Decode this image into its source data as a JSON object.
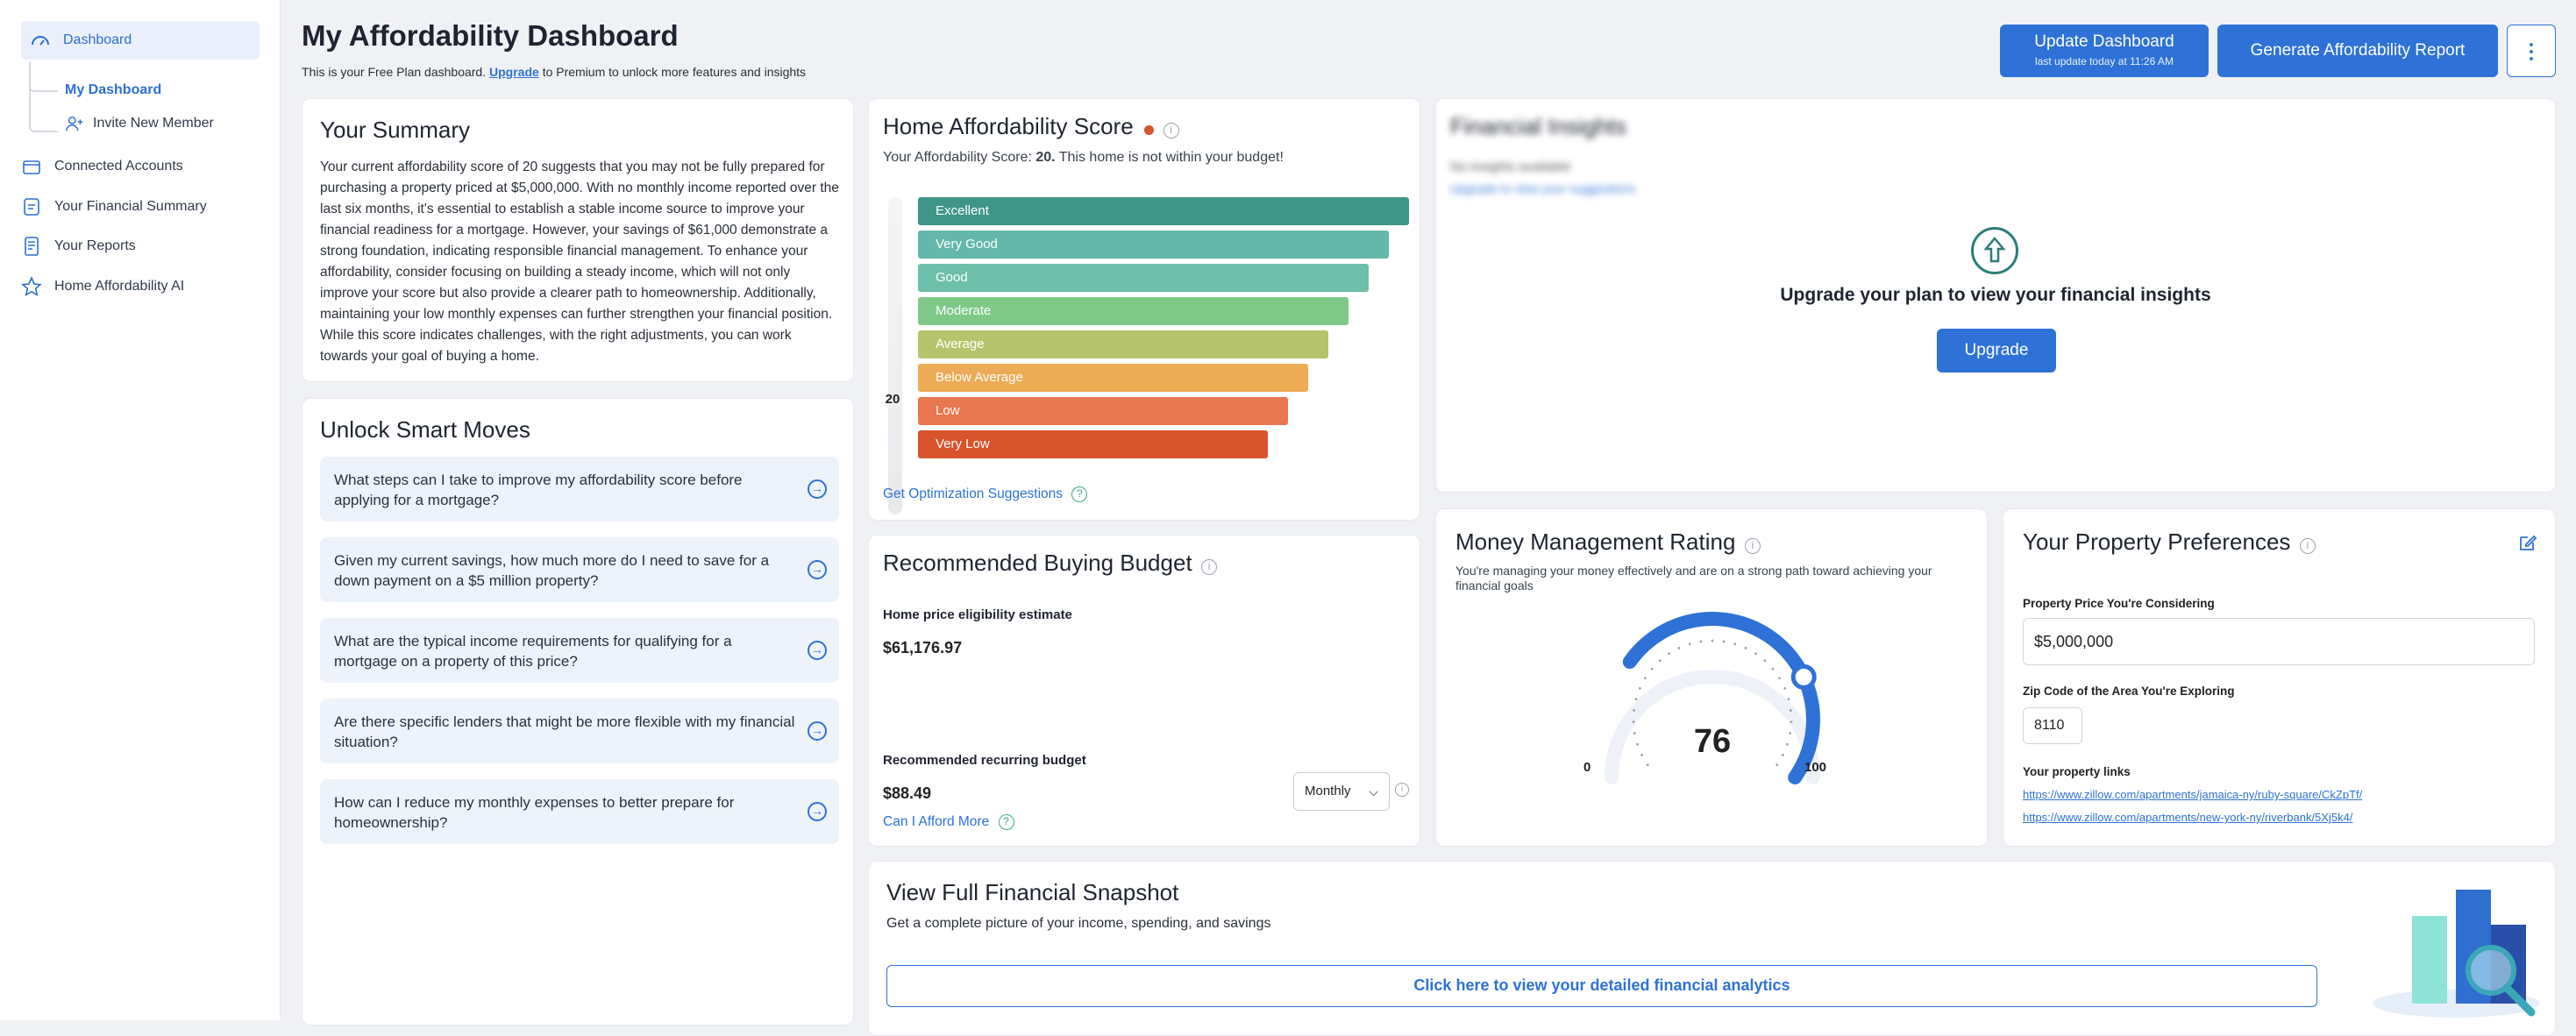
{
  "sidebar": {
    "items": [
      {
        "label": "Dashboard",
        "icon": "dashboard-icon"
      },
      {
        "label": "My Dashboard"
      },
      {
        "label": "Invite New Member",
        "icon": "add-user-icon"
      },
      {
        "label": "Connected Accounts",
        "icon": "wallet-icon"
      },
      {
        "label": "Your Financial Summary",
        "icon": "document-icon"
      },
      {
        "label": "Your Reports",
        "icon": "reports-icon"
      },
      {
        "label": "Home Affordability AI",
        "icon": "star-icon"
      }
    ]
  },
  "header": {
    "title": "My Affordability Dashboard",
    "plan_pre": "This is your Free Plan dashboard.",
    "plan_link": "Upgrade",
    "plan_post": "to Premium to unlock more features and insights",
    "update_label": "Update Dashboard",
    "update_sub": "last update today at 11:26 AM",
    "report_label": "Generate Affordability Report",
    "more_icon": "kebab-icon"
  },
  "summary": {
    "title": "Your Summary",
    "text": "Your current affordability score of 20 suggests that you may not be fully prepared for purchasing a property priced at $5,000,000. With no monthly income reported over the last six months, it's essential to establish a stable income source to improve your financial readiness for a mortgage. However, your savings of $61,000 demonstrate a strong foundation, indicating responsible financial management. To enhance your affordability, consider focusing on building a steady income, which will not only improve your score but also provide a clearer path to homeownership. Additionally, maintaining your low monthly expenses can further strengthen your financial position. While this score indicates challenges, with the right adjustments, you can work towards your goal of buying a home."
  },
  "smart": {
    "title": "Unlock Smart Moves",
    "questions": [
      "What steps can I take to improve my affordability score before applying for a mortgage?",
      "Given my current savings, how much more do I need to save for a down payment on a $5 million property?",
      "What are the typical income requirements for qualifying for a mortgage on a property of this price?",
      "Are there specific lenders that might be more flexible with my financial situation?",
      "How can I reduce my monthly expenses to better prepare for homeownership?"
    ]
  },
  "score": {
    "title": "Home Affordability Score",
    "line_pre": "Your Affordability Score:",
    "value": "20",
    "line_post": "This home is not within your budget!",
    "dot_color": "#d9532b",
    "link": "Get Optimization Suggestions"
  },
  "chart_data": {
    "type": "bar",
    "categories": [
      "Excellent",
      "Very Good",
      "Good",
      "Moderate",
      "Average",
      "Below Average",
      "Low",
      "Very Low"
    ],
    "colors": [
      "#3e9688",
      "#63b8ab",
      "#6cbfa8",
      "#7ec988",
      "#b5c46a",
      "#eeab55",
      "#e8774f",
      "#d9532b"
    ],
    "marker": "20"
  },
  "budget": {
    "title": "Recommended Buying Budget",
    "est_label": "Home price eligibility estimate",
    "est_value": "$61,176.97",
    "rec_label": "Recommended recurring budget",
    "rec_value": "$88.49",
    "select": "Monthly",
    "link": "Can I Afford More"
  },
  "insights": {
    "blurred_title": "Financial Insights",
    "blurred_l1": "No insights available",
    "blurred_l2": "Upgrade to view your suggestions",
    "message": "Upgrade your plan to view your financial insights",
    "button": "Upgrade"
  },
  "money": {
    "title": "Money Management Rating",
    "desc": "You're managing your money effectively and are on a strong path toward achieving your financial goals",
    "value": 76,
    "min": "0",
    "max": "100"
  },
  "prefs": {
    "title": "Your Property Preferences",
    "price_label": "Property Price You're Considering",
    "price_value": "$5,000,000",
    "zip_label": "Zip Code of the Area You're Exploring",
    "zip_value": "8110",
    "links_label": "Your property links",
    "links": [
      "https://www.zillow.com/apartments/jamaica-ny/ruby-square/CkZpTf/",
      "https://www.zillow.com/apartments/new-york-ny/riverbank/5Xj5k4/"
    ]
  },
  "snapshot": {
    "title": "View Full Financial Snapshot",
    "desc": "Get a complete picture of your income, spending, and savings",
    "button": "Click here to view your detailed financial analytics"
  }
}
